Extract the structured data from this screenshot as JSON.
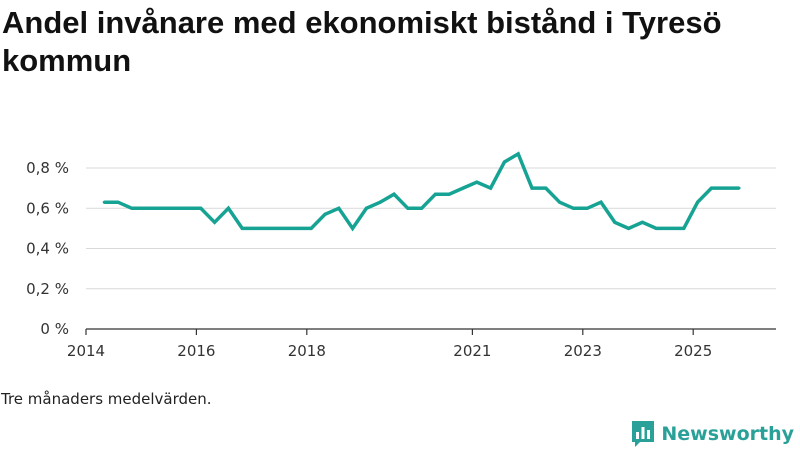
{
  "chart_data": {
    "type": "line",
    "title": "Andel invånare med ekonomiskt bistånd i Tyresö kommun",
    "xlabel": "",
    "ylabel": "",
    "ylim": [
      0,
      0.8
    ],
    "xlim": [
      2014,
      2026.5
    ],
    "y_ticks": [
      {
        "value": 0,
        "label": "0 %"
      },
      {
        "value": 0.2,
        "label": "0,2 %"
      },
      {
        "value": 0.4,
        "label": "0,4 %"
      },
      {
        "value": 0.6,
        "label": "0,6 %"
      },
      {
        "value": 0.8,
        "label": "0,8 %"
      }
    ],
    "x_ticks": [
      {
        "value": 2014,
        "label": "2014"
      },
      {
        "value": 2016,
        "label": "2016"
      },
      {
        "value": 2018,
        "label": "2018"
      },
      {
        "value": 2021,
        "label": "2021"
      },
      {
        "value": 2023,
        "label": "2023"
      },
      {
        "value": 2025,
        "label": "2025"
      }
    ],
    "grid": true,
    "series": [
      {
        "name": "Andel invånare med ekonomiskt bistånd",
        "color": "#16a394",
        "x": [
          2014.33,
          2014.58,
          2014.83,
          2015.08,
          2015.33,
          2015.58,
          2015.83,
          2016.08,
          2016.33,
          2016.58,
          2016.83,
          2017.08,
          2017.33,
          2017.58,
          2017.83,
          2018.08,
          2018.33,
          2018.58,
          2018.83,
          2019.08,
          2019.33,
          2019.58,
          2019.83,
          2020.08,
          2020.33,
          2020.58,
          2020.83,
          2021.08,
          2021.33,
          2021.58,
          2021.83,
          2022.08,
          2022.33,
          2022.58,
          2022.83,
          2023.08,
          2023.33,
          2023.58,
          2023.83,
          2024.08,
          2024.33,
          2024.58,
          2024.83,
          2025.08,
          2025.33,
          2025.58,
          2025.83
        ],
        "values": [
          0.63,
          0.63,
          0.6,
          0.6,
          0.6,
          0.6,
          0.6,
          0.6,
          0.53,
          0.6,
          0.5,
          0.5,
          0.5,
          0.5,
          0.5,
          0.5,
          0.57,
          0.6,
          0.5,
          0.6,
          0.63,
          0.67,
          0.6,
          0.6,
          0.67,
          0.67,
          0.7,
          0.73,
          0.7,
          0.83,
          0.87,
          0.7,
          0.7,
          0.63,
          0.6,
          0.6,
          0.63,
          0.53,
          0.5,
          0.53,
          0.5,
          0.5,
          0.5,
          0.63,
          0.7,
          0.7,
          0.7
        ]
      }
    ]
  },
  "caption": "Tre månaders medelvärden.",
  "brand": {
    "name": "Newsworthy",
    "logo_icon": "bar-chart-flag-icon",
    "color": "#2aa198"
  }
}
